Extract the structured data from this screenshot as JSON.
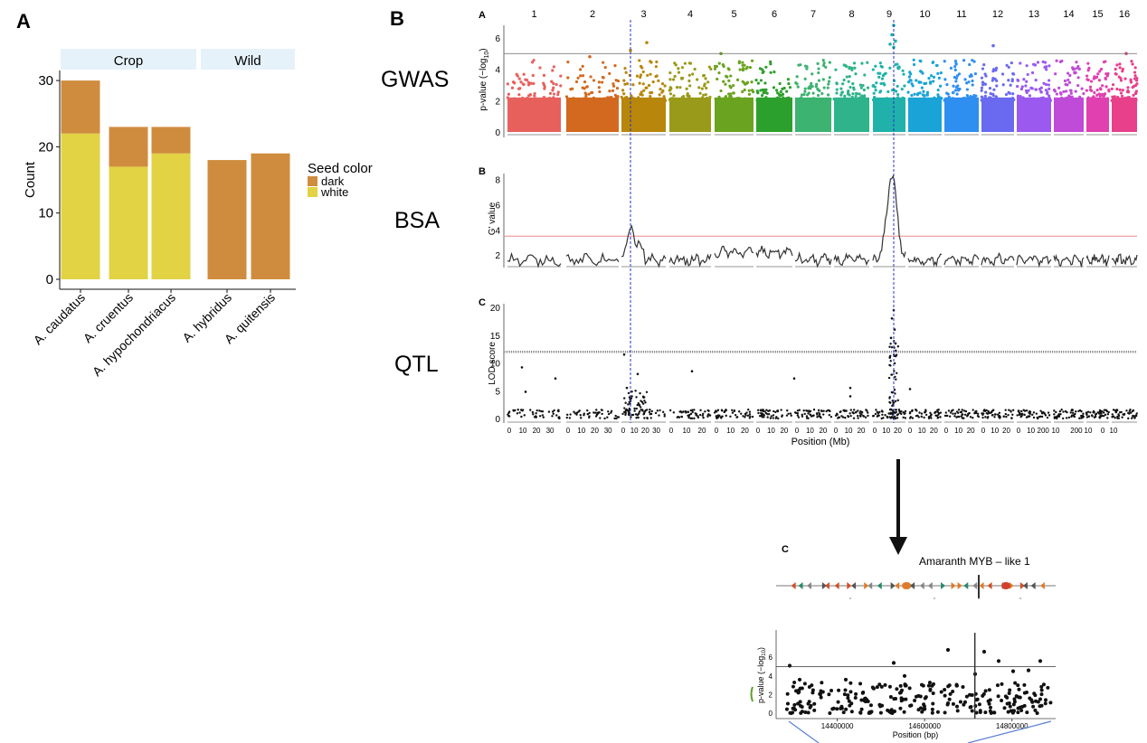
{
  "figure": {
    "panel_a_letter": "A",
    "panel_b_letter": "B",
    "sub_a_letter": "A",
    "sub_b_letter": "B",
    "sub_c_letter": "C",
    "zoom_letter": "C",
    "row_labels": [
      "GWAS",
      "BSA",
      "QTL"
    ],
    "zoom_gene_label": "Amaranth MYB – like 1"
  },
  "colors": {
    "dark": "#d08c3e",
    "white": "#e1d343",
    "strip": "#e6f2fa",
    "guide": "#2830c8",
    "threshold_bsa": "#e88a8a",
    "zoom_line": "#5b7fd6"
  },
  "chart_data": [
    {
      "type": "bar",
      "facets": [
        "Crop",
        "Wild"
      ],
      "categories": [
        "A. caudatus",
        "A. cruentus",
        "A. hypochondriacus",
        "A. hybridus",
        "A. quitensis"
      ],
      "facet_of_category": [
        "Crop",
        "Crop",
        "Crop",
        "Wild",
        "Wild"
      ],
      "series": [
        {
          "name": "white",
          "values": [
            22,
            17,
            19,
            0,
            0
          ]
        },
        {
          "name": "dark",
          "values": [
            8,
            6,
            4,
            18,
            19
          ]
        }
      ],
      "ylabel": "Count",
      "yticks": [
        "0",
        "10",
        "20",
        "30"
      ],
      "ylim": [
        0,
        32
      ],
      "legend_title": "Seed color",
      "legend_placement": "right",
      "stacked": true
    },
    {
      "type": "scatter",
      "chromosomes": [
        "1",
        "2",
        "3",
        "4",
        "5",
        "6",
        "7",
        "8",
        "9",
        "10",
        "11",
        "12",
        "13",
        "14",
        "15",
        "16"
      ],
      "ylabel": "p-value (−log10)",
      "yticks": [
        "0",
        "2",
        "4",
        "6"
      ],
      "ylim": [
        0,
        7
      ],
      "threshold": 5,
      "peak_chromosome": "9",
      "peak_max": 6.8
    },
    {
      "type": "line",
      "ylabel": "G' value",
      "yticks": [
        "2",
        "4",
        "6",
        "8"
      ],
      "ylim": [
        1,
        9
      ],
      "threshold": 3.5,
      "peaks": [
        {
          "chromosome": "3",
          "value": 3.9
        },
        {
          "chromosome": "9",
          "value": 8.4
        }
      ]
    },
    {
      "type": "scatter",
      "ylabel": "LOD score",
      "xlabel": "Position (Mb)",
      "yticks": [
        "0",
        "5",
        "10",
        "15",
        "20"
      ],
      "ylim": [
        0,
        20
      ],
      "threshold": 12,
      "peak_chromosome": "9",
      "peak_max": 19.5,
      "x_tick_label_runs": [
        "0",
        "10",
        "20",
        "30",
        "0",
        "10",
        "20",
        "30",
        "0",
        "10",
        "20",
        "30",
        "0",
        "10",
        "20",
        "0",
        "10",
        "20",
        "0",
        "10",
        "20",
        "0",
        "10",
        "20",
        "0",
        "10",
        "20",
        "0",
        "10",
        "20",
        "0",
        "10",
        "20",
        "0",
        "10",
        "20",
        "0",
        "10",
        "20",
        "0",
        "10",
        "200",
        "10",
        "200",
        "10",
        "0",
        "10"
      ]
    },
    {
      "type": "scatter",
      "ylabel": "p-value (−log10)",
      "xlabel": "Position (bp)",
      "xticks": [
        "14400000",
        "14600000",
        "14800000"
      ],
      "yticks": [
        "0",
        "2",
        "4",
        "6"
      ],
      "xlim": [
        14260000,
        14900000
      ],
      "ylim": [
        0,
        7
      ],
      "threshold": 5,
      "gene_position": 14715000
    }
  ]
}
